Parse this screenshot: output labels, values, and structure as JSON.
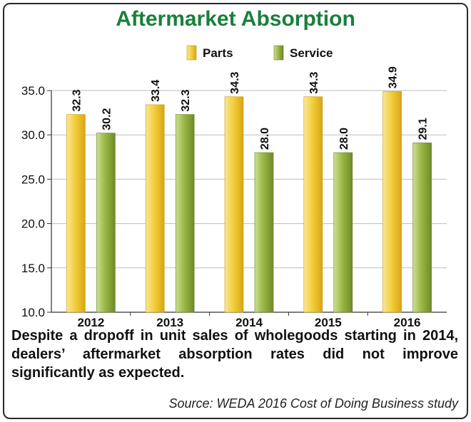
{
  "chart_data": {
    "type": "bar",
    "title": "Aftermarket Absorption",
    "categories": [
      "2012",
      "2013",
      "2014",
      "2015",
      "2016"
    ],
    "series": [
      {
        "name": "Parts",
        "values": [
          32.3,
          33.4,
          34.3,
          34.3,
          34.9
        ],
        "labels": [
          "32.3",
          "33.4",
          "34.3",
          "34.3",
          "34.9"
        ]
      },
      {
        "name": "Service",
        "values": [
          30.2,
          32.3,
          28.0,
          28.0,
          29.1
        ],
        "labels": [
          "30.2",
          "32.3",
          "28.0",
          "28.0",
          "29.1"
        ]
      }
    ],
    "ylim": [
      10,
      35
    ],
    "yticks": [
      "10.0",
      "15.0",
      "20.0",
      "25.0",
      "30.0",
      "35.0"
    ],
    "legend_position": "top-center",
    "grid": true,
    "colors": {
      "Parts": "#e9bd1f",
      "Service": "#8aa83a",
      "title": "#1a7f3c"
    }
  },
  "caption": "Despite a dropoff in unit sales of wholegoods starting in 2014, dealers’ aftermarket absorption rates did not improve significantly as expected.",
  "source": "Source: WEDA 2016 Cost of Doing Business study"
}
